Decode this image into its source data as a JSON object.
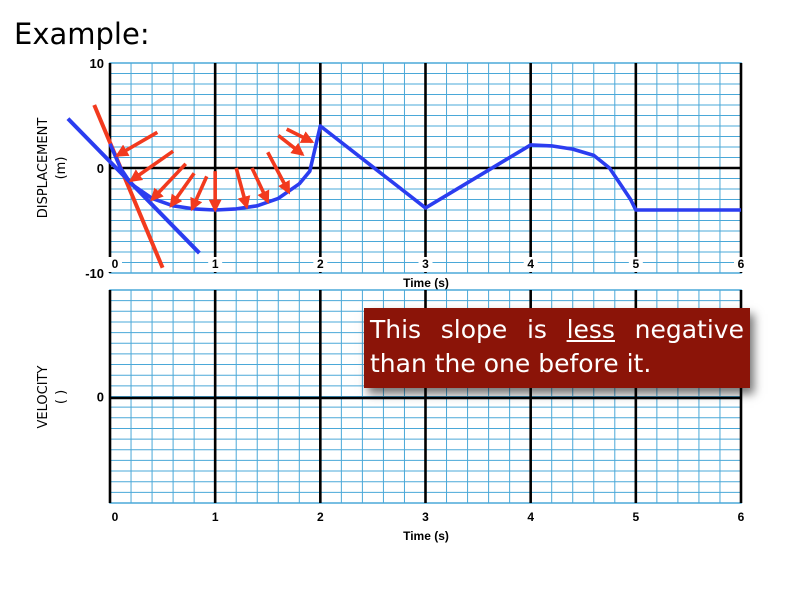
{
  "slide": {
    "title": "Example:"
  },
  "callout": {
    "word1": "This",
    "word2": "slope",
    "word3": "is",
    "word4_underlined": "less",
    "word5": "negative",
    "line2": "than the one before it."
  },
  "colors": {
    "grid_minor": "#4aa8d8",
    "grid_major": "#000000",
    "curve": "#2b3df0",
    "tangent": "#f23a1e",
    "arrow": "#f23a1e",
    "callout_bg": "#8b1408"
  },
  "chart_data": [
    {
      "type": "line",
      "ylabel_line1": "DISPLACEMENT",
      "ylabel_line2": "(m)",
      "xlabel": "Time (s)",
      "xlim": [
        0,
        6
      ],
      "ylim": [
        -10,
        10
      ],
      "x_ticks": [
        "0",
        "1",
        "2",
        "3",
        "4",
        "5",
        "6"
      ],
      "y_ticks": [
        "10",
        "0",
        "-10"
      ],
      "grid": true,
      "series": [
        {
          "points": [
            [
              0.0,
              2.3
            ],
            [
              0.1,
              0.0
            ],
            [
              0.2,
              -1.5
            ],
            [
              0.4,
              -2.9
            ],
            [
              0.6,
              -3.6
            ],
            [
              0.8,
              -3.9
            ],
            [
              1.0,
              -4.0
            ],
            [
              1.2,
              -3.9
            ],
            [
              1.4,
              -3.6
            ],
            [
              1.6,
              -2.9
            ],
            [
              1.8,
              -1.5
            ],
            [
              1.9,
              -0.3
            ],
            [
              2.0,
              4.0
            ],
            [
              3.0,
              -3.8
            ],
            [
              4.0,
              2.2
            ],
            [
              4.2,
              2.1
            ],
            [
              4.4,
              1.8
            ],
            [
              4.6,
              1.2
            ],
            [
              4.75,
              0.0
            ],
            [
              4.85,
              -1.5
            ],
            [
              4.95,
              -3.0
            ],
            [
              5.0,
              -4.0
            ],
            [
              6.0,
              -4.0
            ]
          ]
        }
      ],
      "tangent_lines": [
        {
          "color": "tangent",
          "points": [
            [
              -0.15,
              6.0
            ],
            [
              0.5,
              -9.5
            ]
          ]
        },
        {
          "color": "curve",
          "points": [
            [
              -0.4,
              4.7
            ],
            [
              0.85,
              -8.1
            ]
          ]
        }
      ],
      "arrows": [
        {
          "tail": [
            0.45,
            3.4
          ],
          "head": [
            0.07,
            1.2
          ]
        },
        {
          "tail": [
            0.6,
            1.6
          ],
          "head": [
            0.2,
            -1.2
          ]
        },
        {
          "tail": [
            0.72,
            0.4
          ],
          "head": [
            0.4,
            -3.0
          ]
        },
        {
          "tail": [
            0.8,
            -0.5
          ],
          "head": [
            0.58,
            -3.6
          ]
        },
        {
          "tail": [
            0.92,
            -0.8
          ],
          "head": [
            0.78,
            -3.9
          ]
        },
        {
          "tail": [
            1.0,
            -0.3
          ],
          "head": [
            1.0,
            -4.0
          ]
        },
        {
          "tail": [
            1.2,
            0.0
          ],
          "head": [
            1.3,
            -3.7
          ]
        },
        {
          "tail": [
            1.35,
            0.0
          ],
          "head": [
            1.5,
            -3.2
          ]
        },
        {
          "tail": [
            1.5,
            1.5
          ],
          "head": [
            1.7,
            -2.3
          ]
        },
        {
          "tail": [
            1.6,
            3.1
          ],
          "head": [
            1.83,
            1.3
          ]
        },
        {
          "tail": [
            1.68,
            3.7
          ],
          "head": [
            1.92,
            2.5
          ]
        }
      ]
    },
    {
      "type": "line",
      "ylabel_line1": "VELOCITY",
      "ylabel_line2": "(      )",
      "xlabel": "Time (s)",
      "xlim": [
        0,
        6
      ],
      "ylim": [
        -1,
        1
      ],
      "x_ticks": [
        "0",
        "1",
        "2",
        "3",
        "4",
        "5",
        "6"
      ],
      "y_ticks": [
        "0"
      ],
      "grid": true,
      "series": []
    }
  ]
}
